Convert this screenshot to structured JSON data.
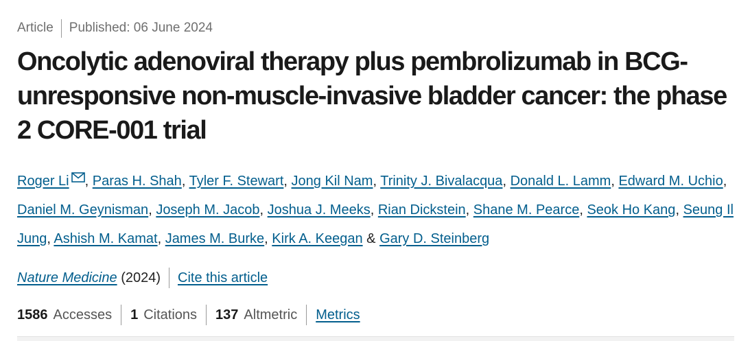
{
  "article_meta": {
    "type": "Article",
    "published": "Published: 06 June 2024"
  },
  "title": "Oncolytic adenoviral therapy plus pembrolizumab in BCG-unresponsive non-muscle-invasive bladder cancer: the phase 2 CORE-001 trial",
  "authors": [
    "Roger Li",
    "Paras H. Shah",
    "Tyler F. Stewart",
    "Jong Kil Nam",
    "Trinity J. Bivalacqua",
    "Donald L. Lamm",
    "Edward M. Uchio",
    "Daniel M. Geynisman",
    "Joseph M. Jacob",
    "Joshua J. Meeks",
    "Rian Dickstein",
    "Shane M. Pearce",
    "Seok Ho Kang",
    "Seung Il Jung",
    "Ashish M. Kamat",
    "James M. Burke",
    "Kirk A. Keegan",
    "Gary D. Steinberg"
  ],
  "author_separator": ",",
  "author_last_joiner": "&",
  "journal": {
    "name": "Nature Medicine",
    "year": "(2024)",
    "cite_label": "Cite this article"
  },
  "metrics": {
    "accesses_value": "1586",
    "accesses_label": "Accesses",
    "citations_value": "1",
    "citations_label": "Citations",
    "altmetric_value": "137",
    "altmetric_label": "Altmetric",
    "metrics_link": "Metrics"
  },
  "colors": {
    "link": "#025e8d",
    "text": "#222222",
    "muted": "#6f6f6f"
  },
  "icons": {
    "corresponding_author": "mail-icon"
  }
}
